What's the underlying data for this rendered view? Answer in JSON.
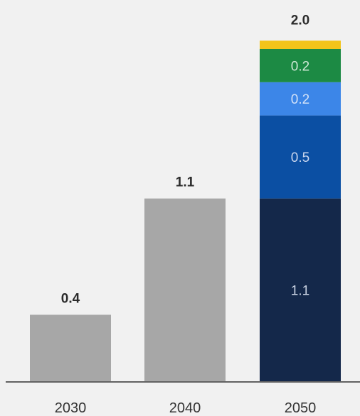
{
  "chart_data": {
    "type": "bar",
    "categories": [
      "2030",
      "2040",
      "2050"
    ],
    "values": [
      0.4,
      1.1,
      2.0
    ],
    "value_labels": [
      "0.4",
      "1.1",
      "2.0"
    ],
    "stacked_2050": [
      {
        "value": 1.1,
        "label": "1.1",
        "color": "#14284a",
        "label_color": "#c9d2e2"
      },
      {
        "value": 0.5,
        "label": "0.5",
        "color": "#0b4fa3",
        "label_color": "#c9d6ee"
      },
      {
        "value": 0.2,
        "label": "0.2",
        "color": "#3c86e8",
        "label_color": "#d3e2f8"
      },
      {
        "value": 0.2,
        "label": "0.2",
        "color": "#1c8a44",
        "label_color": "#cfe8d6"
      },
      {
        "value": 0.05,
        "label": "",
        "color": "#f3c41a",
        "label_color": "#333333"
      }
    ],
    "title": "",
    "xlabel": "",
    "ylabel": "",
    "ylim": [
      0,
      2.2
    ],
    "grid": false,
    "legend": "none",
    "colors": {
      "plain_bar": "#a7a7a7",
      "axis": "#333333",
      "background": "#f1f1f1"
    }
  }
}
